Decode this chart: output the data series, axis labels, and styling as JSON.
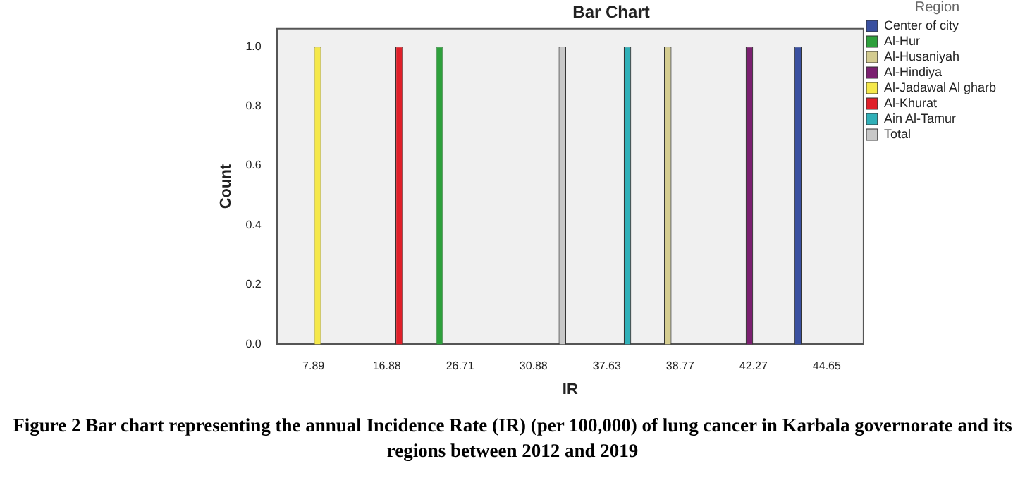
{
  "chart_data": {
    "type": "bar",
    "title": "Bar Chart",
    "xlabel": "IR",
    "ylabel": "Count",
    "legend_title": "Region",
    "legend": "right",
    "grid": false,
    "categories": [
      "7.89",
      "16.88",
      "26.71",
      "30.88",
      "37.63",
      "38.77",
      "42.27",
      "44.65"
    ],
    "ylim": [
      0,
      1.06
    ],
    "yticks": [
      {
        "value": 0,
        "label": "0.0"
      },
      {
        "value": 0.2,
        "label": "0.2"
      },
      {
        "value": 0.4,
        "label": "0.4"
      },
      {
        "value": 0.6,
        "label": "0.6"
      },
      {
        "value": 0.8,
        "label": "0.8"
      },
      {
        "value": 1,
        "label": "1.0"
      }
    ],
    "series": [
      {
        "name": "Center of city",
        "color": "#3a50a0",
        "values": [
          null,
          null,
          null,
          null,
          null,
          null,
          null,
          1
        ]
      },
      {
        "name": "Al-Hur",
        "color": "#2ea03c",
        "values": [
          null,
          null,
          1,
          null,
          null,
          null,
          null,
          null
        ]
      },
      {
        "name": "Al-Husaniyah",
        "color": "#d4cc90",
        "values": [
          null,
          null,
          null,
          null,
          null,
          1,
          null,
          null
        ]
      },
      {
        "name": "Al-Hindiya",
        "color": "#7b2070",
        "values": [
          null,
          null,
          null,
          null,
          null,
          null,
          1,
          null
        ]
      },
      {
        "name": "Al-Jadawal Al gharb",
        "color": "#f5e84a",
        "values": [
          1,
          null,
          null,
          null,
          null,
          null,
          null,
          null
        ]
      },
      {
        "name": "Al-Khurat",
        "color": "#e0202a",
        "values": [
          null,
          1,
          null,
          null,
          null,
          null,
          null,
          null
        ]
      },
      {
        "name": "Ain Al-Tamur",
        "color": "#30b0b8",
        "values": [
          null,
          null,
          null,
          null,
          1,
          null,
          null,
          null
        ]
      },
      {
        "name": "Total",
        "color": "#c8c8c8",
        "values": [
          null,
          null,
          null,
          1,
          null,
          null,
          null,
          null
        ]
      }
    ],
    "annotations": [
      "Figure 2 Bar chart representing the annual Incidence Rate (IR) (per 100,000) of lung cancer in Karbala governorate and its regions between 2012 and 2019"
    ]
  }
}
